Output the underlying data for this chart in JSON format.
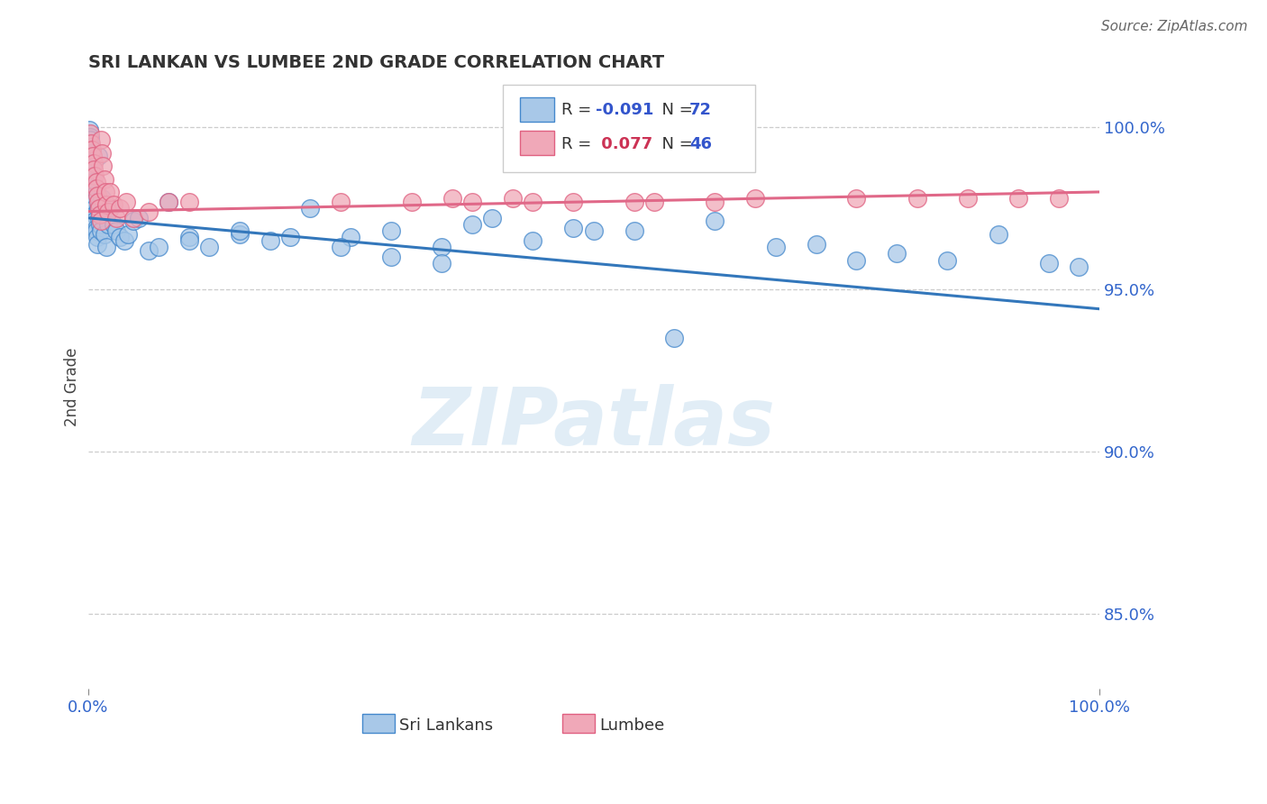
{
  "title": "SRI LANKAN VS LUMBEE 2ND GRADE CORRELATION CHART",
  "source": "Source: ZipAtlas.com",
  "ylabel": "2nd Grade",
  "ylabel_right_labels": [
    "100.0%",
    "95.0%",
    "90.0%",
    "85.0%"
  ],
  "ylabel_right_values": [
    1.0,
    0.95,
    0.9,
    0.85
  ],
  "watermark": "ZIPatlas",
  "sri_lankan_color": "#a8c8e8",
  "lumbee_color": "#f0a8b8",
  "sri_lankan_edge": "#4488cc",
  "lumbee_edge": "#e06080",
  "sri_lankan_line": "#3377bb",
  "lumbee_line": "#e06888",
  "xlim": [
    0.0,
    1.0
  ],
  "ylim": [
    0.827,
    1.013
  ],
  "sl_line_x0": 0.0,
  "sl_line_y0": 0.972,
  "sl_line_x1": 1.0,
  "sl_line_y1": 0.944,
  "lu_line_x0": 0.0,
  "lu_line_y0": 0.974,
  "lu_line_x1": 1.0,
  "lu_line_y1": 0.98,
  "sl_x": [
    0.001,
    0.002,
    0.002,
    0.003,
    0.003,
    0.003,
    0.004,
    0.004,
    0.004,
    0.005,
    0.005,
    0.005,
    0.006,
    0.006,
    0.007,
    0.007,
    0.007,
    0.008,
    0.008,
    0.009,
    0.009,
    0.01,
    0.01,
    0.011,
    0.012,
    0.013,
    0.014,
    0.015,
    0.016,
    0.018,
    0.02,
    0.022,
    0.025,
    0.028,
    0.032,
    0.036,
    0.04,
    0.045,
    0.05,
    0.06,
    0.07,
    0.08,
    0.1,
    0.12,
    0.15,
    0.18,
    0.22,
    0.26,
    0.3,
    0.35,
    0.38,
    0.4,
    0.44,
    0.48,
    0.5,
    0.54,
    0.58,
    0.62,
    0.68,
    0.72,
    0.76,
    0.8,
    0.85,
    0.9,
    0.95,
    0.98,
    0.1,
    0.15,
    0.2,
    0.25,
    0.3,
    0.35
  ],
  "sl_y": [
    0.999,
    0.997,
    0.996,
    0.994,
    0.992,
    0.991,
    0.99,
    0.988,
    0.986,
    0.985,
    0.983,
    0.981,
    0.979,
    0.977,
    0.975,
    0.973,
    0.971,
    0.969,
    0.968,
    0.966,
    0.964,
    0.991,
    0.975,
    0.972,
    0.97,
    0.968,
    0.978,
    0.974,
    0.967,
    0.963,
    0.97,
    0.975,
    0.97,
    0.968,
    0.966,
    0.965,
    0.967,
    0.971,
    0.972,
    0.962,
    0.963,
    0.977,
    0.966,
    0.963,
    0.967,
    0.965,
    0.975,
    0.966,
    0.968,
    0.963,
    0.97,
    0.972,
    0.965,
    0.969,
    0.968,
    0.968,
    0.935,
    0.971,
    0.963,
    0.964,
    0.959,
    0.961,
    0.959,
    0.967,
    0.958,
    0.957,
    0.965,
    0.968,
    0.966,
    0.963,
    0.96,
    0.958
  ],
  "lu_x": [
    0.002,
    0.003,
    0.004,
    0.005,
    0.006,
    0.006,
    0.007,
    0.008,
    0.008,
    0.009,
    0.01,
    0.011,
    0.012,
    0.013,
    0.013,
    0.014,
    0.015,
    0.016,
    0.017,
    0.018,
    0.02,
    0.022,
    0.025,
    0.028,
    0.032,
    0.038,
    0.045,
    0.06,
    0.08,
    0.1,
    0.25,
    0.32,
    0.38,
    0.44,
    0.56,
    0.66,
    0.76,
    0.82,
    0.87,
    0.92,
    0.96,
    0.62,
    0.54,
    0.48,
    0.42,
    0.36
  ],
  "lu_y": [
    0.998,
    0.995,
    0.993,
    0.991,
    0.989,
    0.987,
    0.985,
    0.983,
    0.981,
    0.979,
    0.977,
    0.975,
    0.973,
    0.971,
    0.996,
    0.992,
    0.988,
    0.984,
    0.98,
    0.976,
    0.974,
    0.98,
    0.976,
    0.972,
    0.975,
    0.977,
    0.972,
    0.974,
    0.977,
    0.977,
    0.977,
    0.977,
    0.977,
    0.977,
    0.977,
    0.978,
    0.978,
    0.978,
    0.978,
    0.978,
    0.978,
    0.977,
    0.977,
    0.977,
    0.978,
    0.978
  ]
}
